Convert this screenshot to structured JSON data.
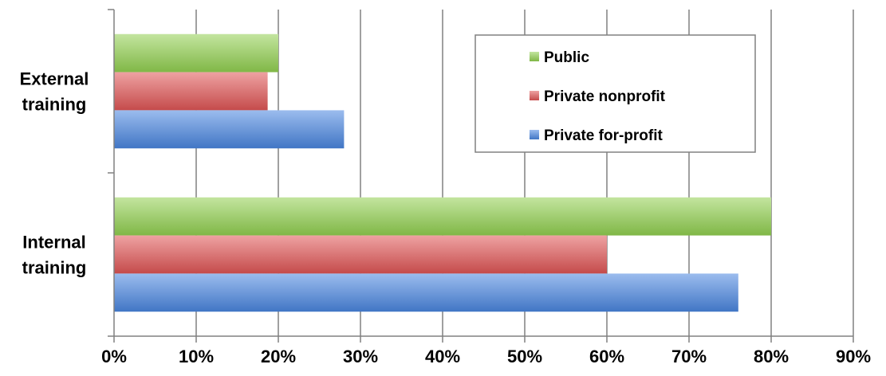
{
  "chart_data": {
    "type": "bar",
    "orientation": "horizontal",
    "categories": [
      "External training",
      "Internal training"
    ],
    "category_lines": [
      [
        "External",
        "training"
      ],
      [
        "Internal",
        "training"
      ]
    ],
    "series": [
      {
        "name": "Public",
        "color": "#92D050",
        "values": [
          20,
          80
        ]
      },
      {
        "name": "Private nonprofit",
        "color": "#E05555",
        "values": [
          18.7,
          60
        ]
      },
      {
        "name": "Private for-profit",
        "color": "#4A86E0",
        "values": [
          28,
          76
        ]
      }
    ],
    "x_ticks": [
      "0%",
      "10%",
      "20%",
      "30%",
      "40%",
      "50%",
      "60%",
      "70%",
      "80%",
      "90%"
    ],
    "xlim": [
      0,
      90
    ],
    "xlabel": "",
    "ylabel": "",
    "grid": true,
    "legend_position": "top-right"
  }
}
